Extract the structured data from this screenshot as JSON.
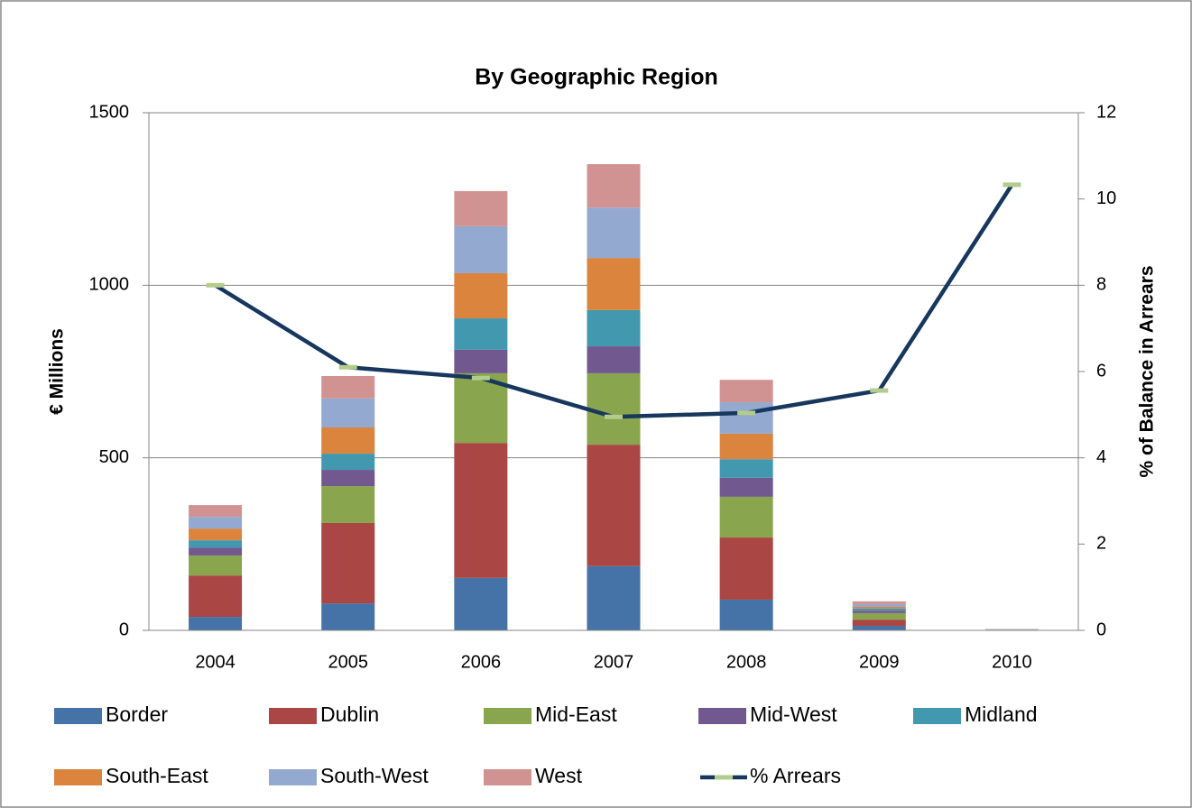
{
  "chart_data": {
    "type": "bar",
    "stacked": true,
    "title": "By Geographic Region",
    "y_label": "€ Millions",
    "y2_label": "% of Balance in Arrears",
    "categories": [
      "2004",
      "2005",
      "2006",
      "2007",
      "2008",
      "2009",
      "2010"
    ],
    "ylim": [
      0,
      1500
    ],
    "yticks": [
      0,
      500,
      1000,
      1500
    ],
    "y2lim": [
      0,
      12
    ],
    "y2ticks": [
      0,
      2,
      4,
      6,
      8,
      10,
      12
    ],
    "grid": true,
    "series": [
      {
        "name": "Border",
        "color": "#4572a7",
        "values": [
          39,
          78,
          152,
          186,
          89,
          13,
          0
        ]
      },
      {
        "name": "Dublin",
        "color": "#aa4643",
        "values": [
          120,
          233,
          391,
          352,
          180,
          18,
          1
        ]
      },
      {
        "name": "Mid-East",
        "color": "#89a54e",
        "values": [
          58,
          107,
          202,
          207,
          118,
          19,
          1
        ]
      },
      {
        "name": "Mid-West",
        "color": "#71588f",
        "values": [
          23,
          47,
          68,
          78,
          55,
          7,
          0
        ]
      },
      {
        "name": "Midland",
        "color": "#4198af",
        "values": [
          21,
          47,
          91,
          105,
          54,
          6,
          0
        ]
      },
      {
        "name": "South-East",
        "color": "#db843d",
        "values": [
          34,
          76,
          131,
          151,
          74,
          5,
          0
        ]
      },
      {
        "name": "South-West",
        "color": "#93a9cf",
        "values": [
          34,
          84,
          136,
          146,
          91,
          8,
          1
        ]
      },
      {
        "name": "West",
        "color": "#d19392",
        "values": [
          34,
          65,
          102,
          126,
          65,
          8,
          1
        ]
      },
      {
        "name": "% Arrears",
        "type": "line",
        "axis": "y2",
        "color": "#17375e",
        "marker_color": "#b3cc8c",
        "values": [
          8.0,
          6.1,
          5.85,
          4.95,
          5.04,
          5.56,
          10.33
        ]
      }
    ]
  }
}
